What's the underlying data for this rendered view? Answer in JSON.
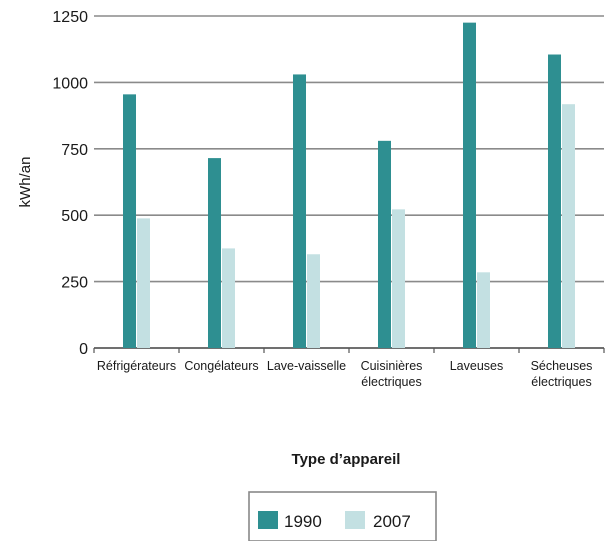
{
  "chart_data": {
    "type": "bar",
    "title": "",
    "xlabel": "Type d’appareil",
    "ylabel": "kWh/an",
    "ylim": [
      0,
      1250
    ],
    "yticks": [
      0,
      250,
      500,
      750,
      1000,
      1250
    ],
    "grid": true,
    "legend_position": "bottom-center",
    "categories": [
      [
        "Réfrigérateurs"
      ],
      [
        "Congélateurs"
      ],
      [
        "Lave-vaisselle"
      ],
      [
        "Cuisinières",
        "électriques"
      ],
      [
        "Laveuses"
      ],
      [
        "Sécheuses",
        "électriques"
      ]
    ],
    "series": [
      {
        "name": "1990",
        "color": "#2e8f91",
        "values": [
          955,
          715,
          1030,
          780,
          1225,
          1105
        ]
      },
      {
        "name": "2007",
        "color": "#c3e0e2",
        "values": [
          488,
          375,
          353,
          522,
          285,
          918
        ]
      }
    ]
  }
}
